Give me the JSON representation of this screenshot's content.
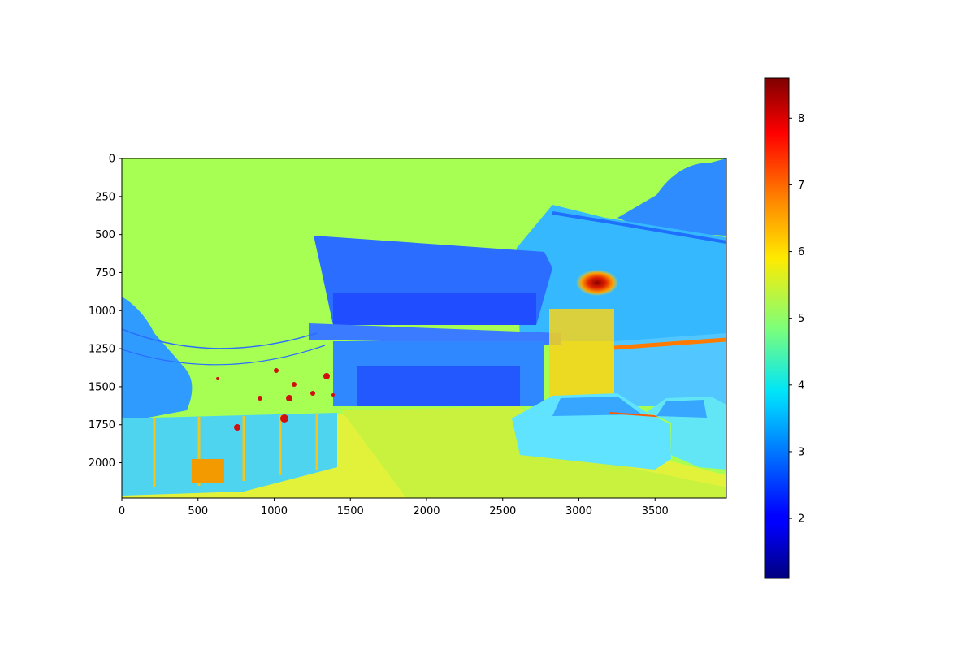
{
  "chart_data": {
    "type": "heatmap",
    "title": "",
    "xlabel": "",
    "ylabel": "",
    "image_width": 3968,
    "image_height": 2232,
    "xlim": [
      0,
      3968
    ],
    "ylim": [
      2232,
      0
    ],
    "x_ticks": [
      0,
      500,
      1000,
      1500,
      2000,
      2500,
      3000,
      3500
    ],
    "y_ticks": [
      0,
      250,
      500,
      750,
      1000,
      1250,
      1500,
      1750,
      2000
    ],
    "colormap": "jet",
    "colorbar": {
      "vmin": 1.1,
      "vmax": 8.6,
      "ticks": [
        2,
        3,
        4,
        5,
        6,
        7,
        8
      ]
    },
    "grid": false,
    "colors": {
      "background_value_color": "#a6ff52",
      "dominant_structure_color": "#2a9cff"
    }
  }
}
